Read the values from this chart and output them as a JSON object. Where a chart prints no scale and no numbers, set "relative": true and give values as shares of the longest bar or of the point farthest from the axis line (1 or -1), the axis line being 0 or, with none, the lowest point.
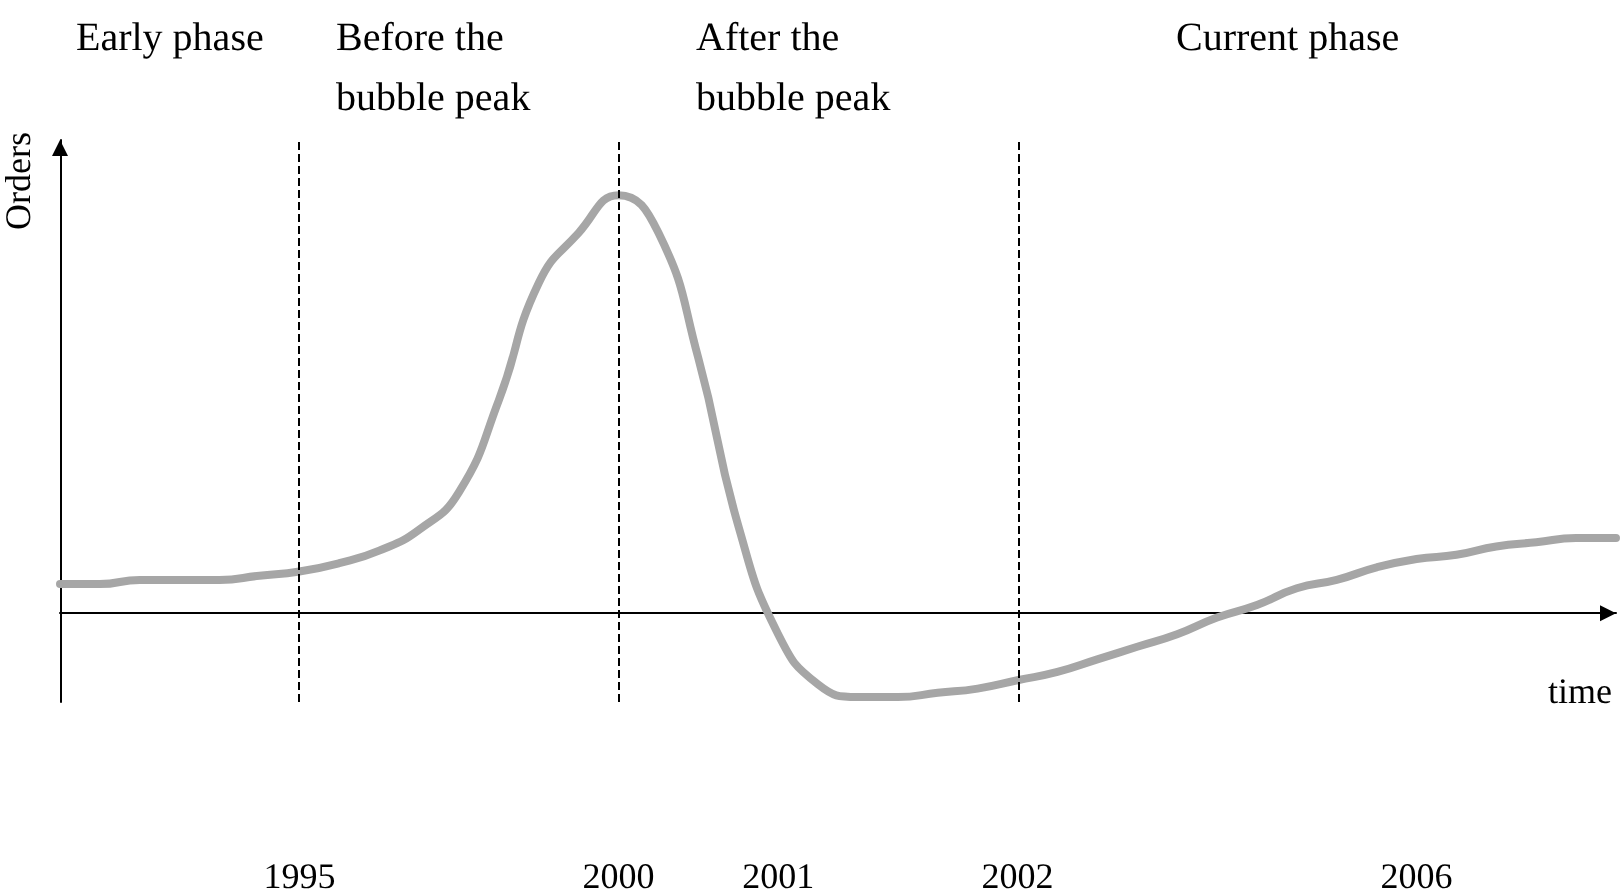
{
  "chart_data": {
    "type": "line",
    "relative": true,
    "xlabel": "time",
    "ylabel": "Orders",
    "annotations": [
      "Early phase",
      "Before the bubble peak",
      "After the bubble peak",
      "Current phase"
    ],
    "categories": [
      null,
      null,
      null,
      null,
      null,
      null,
      "1995",
      null,
      null,
      null,
      null,
      null,
      null,
      null,
      "2000",
      null,
      null,
      null,
      "2001",
      null,
      null,
      null,
      null,
      null,
      "2002",
      null,
      null,
      null,
      null,
      null,
      null,
      null,
      null,
      null,
      "2006",
      null,
      null,
      null,
      null,
      null
    ],
    "series": [
      {
        "color": "#a6a6a6",
        "values": [
          0.07,
          0.07,
          0.08,
          0.08,
          0.08,
          0.09,
          0.1,
          0.12,
          0.15,
          0.2,
          0.29,
          0.51,
          0.79,
          0.91,
          1,
          0.91,
          0.61,
          0.21,
          -0.05,
          -0.17,
          -0.2,
          -0.2,
          -0.19,
          -0.18,
          -0.16,
          -0.14,
          -0.11,
          -0.08,
          -0.05,
          -0.01,
          0.02,
          0.06,
          0.08,
          0.11,
          0.13,
          0.14,
          0.16,
          0.17,
          0.18,
          0.18
        ]
      }
    ],
    "ref_lines": [
      {
        "axis": "x",
        "value": "1995",
        "color": "#000000",
        "line_style": "dashed"
      },
      {
        "axis": "x",
        "value": "2000",
        "color": "#000000",
        "line_style": "dashed"
      },
      {
        "axis": "x",
        "value": "2002",
        "color": "#000000",
        "line_style": "dashed"
      }
    ],
    "grid": false,
    "marker": "none",
    "line_style": "solid"
  }
}
